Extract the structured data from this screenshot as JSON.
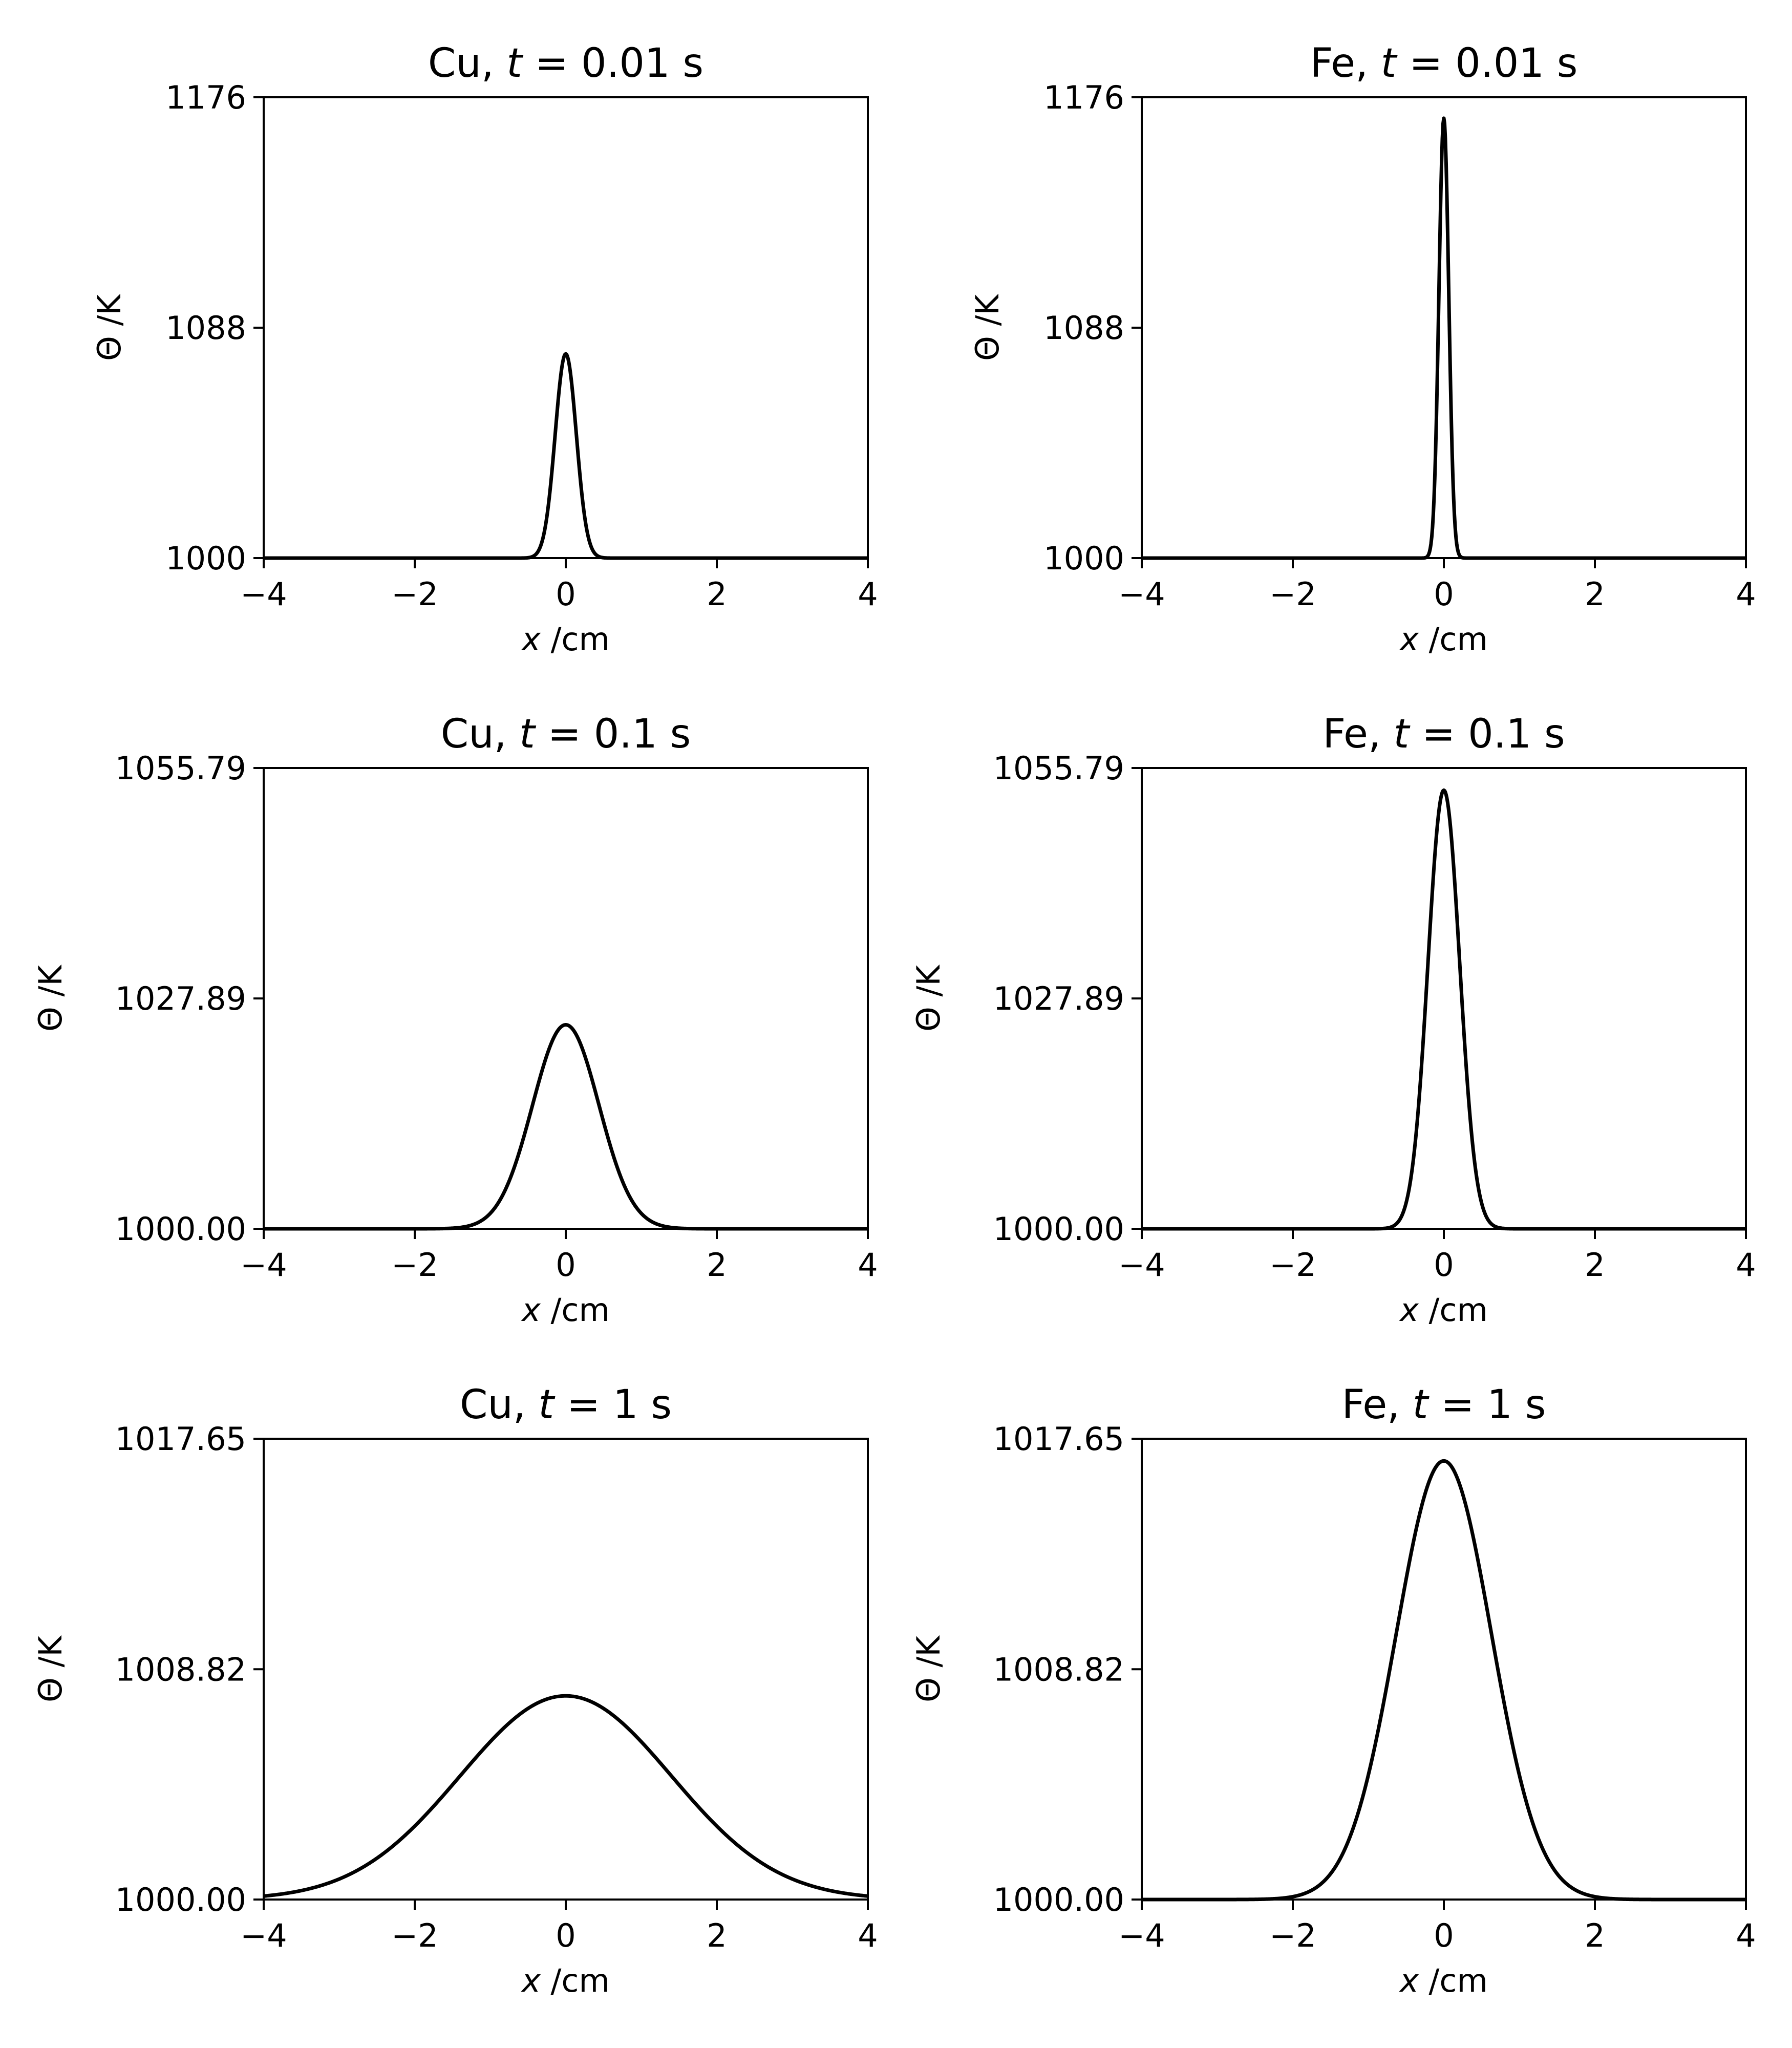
{
  "figure": {
    "line_color": "#000000",
    "background": "#ffffff"
  },
  "chart_data": [
    {
      "type": "line",
      "title": {
        "prefix": "Cu, ",
        "var": "t",
        "rest": " = 0.01 s"
      },
      "xlabel": {
        "var": "x",
        "rest": " /cm"
      },
      "ylabel": "Θ /K",
      "xlim": [
        -4,
        4
      ],
      "ylim": [
        1000,
        1176
      ],
      "xticks": [
        -4,
        -2,
        0,
        2,
        4
      ],
      "xtick_labels": [
        "−4",
        "−2",
        "0",
        "2",
        "4"
      ],
      "yticks": [
        1000,
        1088,
        1176
      ],
      "ytick_labels": [
        "1000",
        "1088",
        "1176"
      ],
      "series": [
        {
          "curve": "gaussian",
          "baseline": 1000,
          "peak": 1078,
          "center": 0,
          "sigma": 0.14
        }
      ]
    },
    {
      "type": "line",
      "title": {
        "prefix": "Fe, ",
        "var": "t",
        "rest": " = 0.01 s"
      },
      "xlabel": {
        "var": "x",
        "rest": " /cm"
      },
      "ylabel": "Θ /K",
      "xlim": [
        -4,
        4
      ],
      "ylim": [
        1000,
        1176
      ],
      "xticks": [
        -4,
        -2,
        0,
        2,
        4
      ],
      "xtick_labels": [
        "−4",
        "−2",
        "0",
        "2",
        "4"
      ],
      "yticks": [
        1000,
        1088,
        1176
      ],
      "ytick_labels": [
        "1000",
        "1088",
        "1176"
      ],
      "series": [
        {
          "curve": "gaussian",
          "baseline": 1000,
          "peak": 1168,
          "center": 0,
          "sigma": 0.065
        }
      ]
    },
    {
      "type": "line",
      "title": {
        "prefix": "Cu, ",
        "var": "t",
        "rest": " = 0.1 s"
      },
      "xlabel": {
        "var": "x",
        "rest": " /cm"
      },
      "ylabel": "Θ /K",
      "xlim": [
        -4,
        4
      ],
      "ylim": [
        1000,
        1055.79
      ],
      "xticks": [
        -4,
        -2,
        0,
        2,
        4
      ],
      "xtick_labels": [
        "−4",
        "−2",
        "0",
        "2",
        "4"
      ],
      "yticks": [
        1000,
        1027.89,
        1055.79
      ],
      "ytick_labels": [
        "1000.00",
        "1027.89",
        "1055.79"
      ],
      "series": [
        {
          "curve": "gaussian",
          "baseline": 1000,
          "peak": 1024.7,
          "center": 0,
          "sigma": 0.44
        }
      ]
    },
    {
      "type": "line",
      "title": {
        "prefix": "Fe, ",
        "var": "t",
        "rest": " = 0.1 s"
      },
      "xlabel": {
        "var": "x",
        "rest": " /cm"
      },
      "ylabel": "Θ /K",
      "xlim": [
        -4,
        4
      ],
      "ylim": [
        1000,
        1055.79
      ],
      "xticks": [
        -4,
        -2,
        0,
        2,
        4
      ],
      "xtick_labels": [
        "−4",
        "−2",
        "0",
        "2",
        "4"
      ],
      "yticks": [
        1000,
        1027.89,
        1055.79
      ],
      "ytick_labels": [
        "1000.00",
        "1027.89",
        "1055.79"
      ],
      "series": [
        {
          "curve": "gaussian",
          "baseline": 1000,
          "peak": 1053.1,
          "center": 0,
          "sigma": 0.21
        }
      ]
    },
    {
      "type": "line",
      "title": {
        "prefix": "Cu, ",
        "var": "t",
        "rest": " = 1 s"
      },
      "xlabel": {
        "var": "x",
        "rest": " /cm"
      },
      "ylabel": "Θ /K",
      "xlim": [
        -4,
        4
      ],
      "ylim": [
        1000,
        1017.65
      ],
      "xticks": [
        -4,
        -2,
        0,
        2,
        4
      ],
      "xtick_labels": [
        "−4",
        "−2",
        "0",
        "2",
        "4"
      ],
      "yticks": [
        1000,
        1008.82,
        1017.65
      ],
      "ytick_labels": [
        "1000.00",
        "1008.82",
        "1017.65"
      ],
      "series": [
        {
          "curve": "gaussian",
          "baseline": 1000,
          "peak": 1007.8,
          "center": 0,
          "sigma": 1.4
        }
      ]
    },
    {
      "type": "line",
      "title": {
        "prefix": "Fe, ",
        "var": "t",
        "rest": " = 1 s"
      },
      "xlabel": {
        "var": "x",
        "rest": " /cm"
      },
      "ylabel": "Θ /K",
      "xlim": [
        -4,
        4
      ],
      "ylim": [
        1000,
        1017.65
      ],
      "xticks": [
        -4,
        -2,
        0,
        2,
        4
      ],
      "xtick_labels": [
        "−4",
        "−2",
        "0",
        "2",
        "4"
      ],
      "yticks": [
        1000,
        1008.82,
        1017.65
      ],
      "ytick_labels": [
        "1000.00",
        "1008.82",
        "1017.65"
      ],
      "series": [
        {
          "curve": "gaussian",
          "baseline": 1000,
          "peak": 1016.8,
          "center": 0,
          "sigma": 0.63
        }
      ]
    }
  ]
}
